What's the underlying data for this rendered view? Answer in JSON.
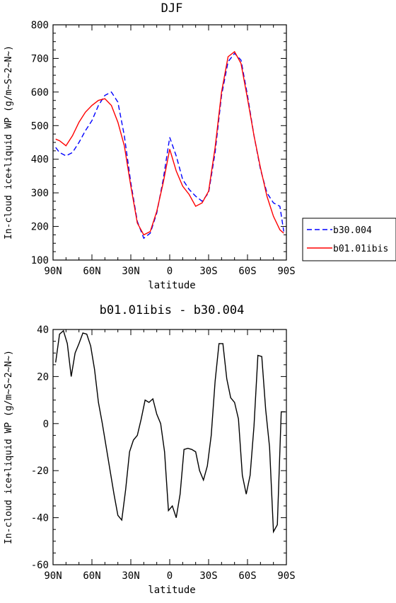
{
  "chart_data": [
    {
      "type": "line",
      "title": "DJF",
      "xlabel": "latitude",
      "ylabel": "In-cloud ice+liquid WP (g/m~S~2~N~)",
      "xticks": [
        "90N",
        "60N",
        "30N",
        "0",
        "30S",
        "60S",
        "90S"
      ],
      "yticks": [
        "100",
        "200",
        "300",
        "400",
        "500",
        "600",
        "700",
        "800"
      ],
      "xlim": [
        -90,
        90
      ],
      "ylim": [
        100,
        800
      ],
      "legend_position": "right",
      "series": [
        {
          "name": "b30.004",
          "color": "#0000ff",
          "style": "dashed",
          "x": [
            -88,
            -85,
            -80,
            -75,
            -70,
            -65,
            -60,
            -55,
            -50,
            -45,
            -40,
            -35,
            -30,
            -25,
            -20,
            -15,
            -10,
            -5,
            0,
            5,
            10,
            15,
            20,
            25,
            30,
            35,
            40,
            45,
            50,
            55,
            60,
            65,
            70,
            75,
            80,
            85,
            88
          ],
          "values": [
            435,
            420,
            410,
            420,
            450,
            485,
            515,
            560,
            590,
            600,
            570,
            470,
            330,
            215,
            165,
            180,
            240,
            340,
            465,
            410,
            340,
            310,
            290,
            275,
            300,
            420,
            590,
            690,
            715,
            695,
            590,
            470,
            370,
            300,
            270,
            260,
            185
          ]
        },
        {
          "name": "b01.01ibis",
          "color": "#ff0000",
          "style": "solid",
          "x": [
            -88,
            -85,
            -80,
            -75,
            -70,
            -65,
            -60,
            -55,
            -50,
            -45,
            -40,
            -35,
            -30,
            -25,
            -20,
            -15,
            -10,
            -5,
            0,
            5,
            10,
            15,
            20,
            25,
            30,
            35,
            40,
            45,
            50,
            55,
            60,
            65,
            70,
            75,
            80,
            85,
            88
          ],
          "values": [
            460,
            455,
            440,
            470,
            510,
            540,
            560,
            575,
            580,
            560,
            510,
            440,
            320,
            210,
            175,
            185,
            245,
            330,
            430,
            365,
            320,
            295,
            260,
            270,
            305,
            435,
            600,
            705,
            720,
            685,
            580,
            470,
            375,
            290,
            230,
            190,
            180
          ]
        }
      ]
    },
    {
      "type": "line",
      "title": "b01.01ibis - b30.004",
      "xlabel": "latitude",
      "ylabel": "In-cloud ice+liquid WP (g/m~S~2~N~)",
      "xticks": [
        "90N",
        "60N",
        "30N",
        "0",
        "30S",
        "60S",
        "90S"
      ],
      "yticks": [
        "-60",
        "-40",
        "-20",
        "0",
        "20",
        "40"
      ],
      "xlim": [
        -90,
        90
      ],
      "ylim": [
        -60,
        40
      ],
      "series": [
        {
          "color": "#000000",
          "style": "solid",
          "x": [
            -88,
            -85,
            -82,
            -79,
            -76,
            -73,
            -70,
            -67,
            -64,
            -61,
            -58,
            -55,
            -52,
            -49,
            -46,
            -43,
            -40,
            -37,
            -34,
            -31,
            -28,
            -25,
            -22,
            -19,
            -16,
            -13,
            -10,
            -7,
            -4,
            -1,
            2,
            5,
            8,
            11,
            14,
            17,
            20,
            23,
            26,
            29,
            32,
            35,
            38,
            41,
            44,
            47,
            50,
            53,
            56,
            59,
            62,
            65,
            68,
            71,
            74,
            77,
            80,
            83,
            86,
            89
          ],
          "values": [
            26,
            38,
            39.5,
            34,
            20,
            30,
            34,
            38.5,
            38,
            33,
            23,
            9,
            0,
            -10,
            -20,
            -30,
            -39,
            -41,
            -28,
            -12,
            -7,
            -5,
            2,
            10,
            9,
            10.5,
            4,
            0,
            -12,
            -37,
            -35,
            -40,
            -30,
            -11,
            -10.5,
            -11,
            -12,
            -20,
            -24,
            -18,
            -5,
            18,
            34,
            34,
            19,
            11,
            9,
            2,
            -22,
            -30,
            -22,
            -1,
            29,
            28.5,
            6,
            -10,
            -46,
            -43,
            5,
            5
          ]
        }
      ]
    }
  ]
}
